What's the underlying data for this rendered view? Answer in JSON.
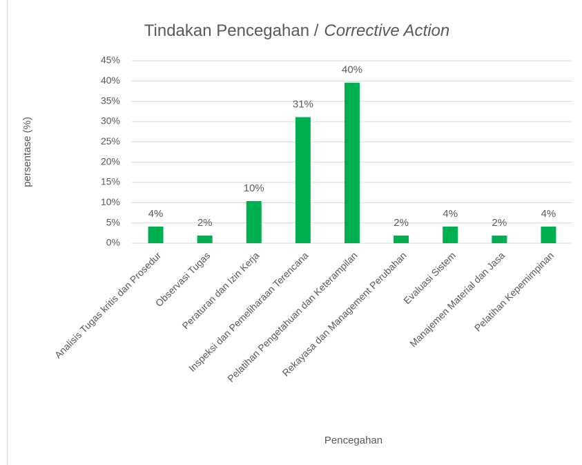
{
  "chart_data": {
    "type": "bar",
    "title": {
      "main": "Tindakan Pencegahan /",
      "emphasis": "Corrective Action"
    },
    "y_label": "persentase (%)",
    "x_label": "Pencegahan",
    "categories": [
      "Analisis Tugas kritis dan Prosedur",
      "Observasi Tugas",
      "Peraturan dan Izin Kerja",
      "Inspeksi dan Pemeliharaan Terencana",
      "Pelatihan Pengetahuan dan Keterampilan",
      "Rekayasa dan Management Perubahan",
      "Evaluasi Sistem",
      "Manajemen Material dan Jasa",
      "Pelatihan Kepemimpinan"
    ],
    "values": [
      4.1,
      1.9,
      10.4,
      31.1,
      39.6,
      1.9,
      4.1,
      1.9,
      4.1
    ],
    "value_labels": [
      "4%",
      "2%",
      "10%",
      "31%",
      "40%",
      "2%",
      "4%",
      "2%",
      "4%"
    ],
    "color": "#00b050",
    "ylim": [
      0,
      45
    ],
    "yticks": [
      {
        "value": 0,
        "label": "0%"
      },
      {
        "value": 5,
        "label": "5%"
      },
      {
        "value": 10,
        "label": "10%"
      },
      {
        "value": 15,
        "label": "15%"
      },
      {
        "value": 20,
        "label": "20%"
      },
      {
        "value": 25,
        "label": "25%"
      },
      {
        "value": 30,
        "label": "30%"
      },
      {
        "value": 35,
        "label": "35%"
      },
      {
        "value": 40,
        "label": "40%"
      },
      {
        "value": 45,
        "label": "45%"
      }
    ],
    "grid": true
  }
}
